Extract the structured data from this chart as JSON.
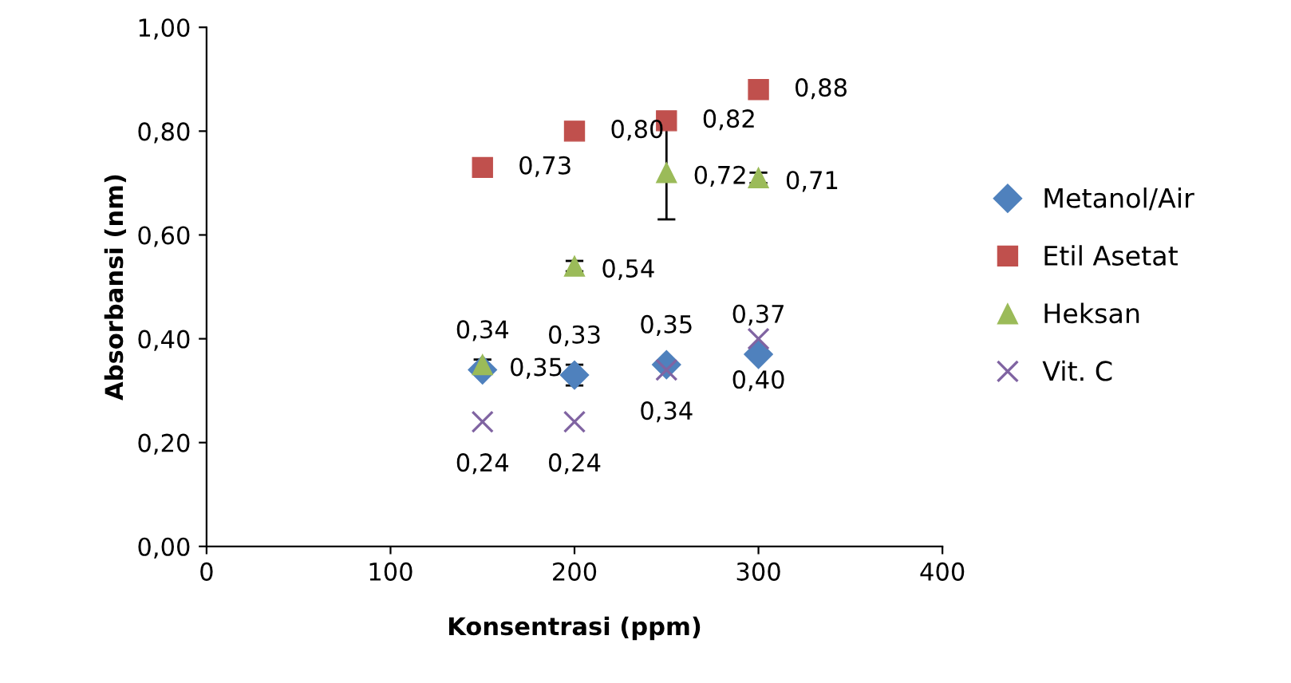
{
  "chart_data": {
    "type": "scatter",
    "xlabel": "Konsentrasi (ppm)",
    "ylabel": "Absorbansi (nm)",
    "x": [
      150,
      200,
      250,
      300
    ],
    "series": [
      {
        "name": "Metanol/Air",
        "color": "#4f81bd",
        "marker": "diamond",
        "values": [
          0.34,
          0.33,
          0.35,
          0.37
        ],
        "value_labels": [
          "0,34",
          "0,33",
          "0,35",
          "0,37"
        ],
        "errors": [
          null,
          0.02,
          null,
          null
        ]
      },
      {
        "name": "Etil Asetat",
        "color": "#c0504d",
        "marker": "square",
        "values": [
          0.73,
          0.8,
          0.82,
          0.88
        ],
        "value_labels": [
          "0,73",
          "0,80",
          "0,82",
          "0,88"
        ]
      },
      {
        "name": "Heksan",
        "color": "#9bbb59",
        "marker": "triangle",
        "values": [
          0.35,
          0.54,
          0.72,
          0.71
        ],
        "value_labels": [
          "0,35",
          "0,54",
          "0,72",
          "0,71"
        ],
        "errors": [
          0.01,
          0.01,
          0.09,
          0.01
        ]
      },
      {
        "name": "Vit. C",
        "color": "#8064a2",
        "marker": "cross",
        "values": [
          0.24,
          0.24,
          0.34,
          0.4
        ],
        "value_labels": [
          "0,24",
          "0,24",
          "0,34",
          "0,40"
        ]
      }
    ],
    "xlim": [
      0,
      400
    ],
    "xticks": [
      0,
      100,
      200,
      300,
      400
    ],
    "ylim": [
      0,
      1
    ],
    "yticks": [
      {
        "value": 0,
        "label": "0,00"
      },
      {
        "value": 0.2,
        "label": "0,20"
      },
      {
        "value": 0.4,
        "label": "0,40"
      },
      {
        "value": 0.6,
        "label": "0,60"
      },
      {
        "value": 0.8,
        "label": "0,80"
      },
      {
        "value": 1,
        "label": "1,00"
      }
    ],
    "legend": "right",
    "grid": false
  }
}
